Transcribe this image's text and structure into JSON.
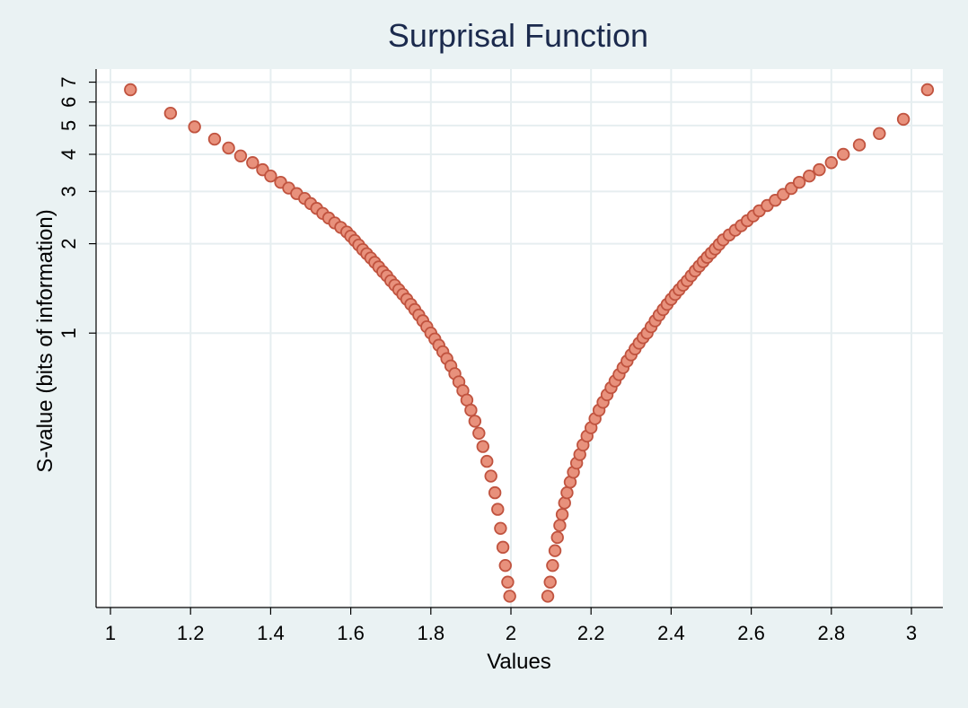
{
  "chart_data": {
    "type": "scatter",
    "title": "Surprisal Function",
    "xlabel": "Values",
    "ylabel": "S-value (bits of information)",
    "xlim": [
      0.97,
      3.08
    ],
    "ylim": [
      0.12,
      7.6
    ],
    "y_scale": "log",
    "grid": true,
    "legend": "none",
    "x_ticks": [
      {
        "value": 1,
        "label": "1"
      },
      {
        "value": 1.2,
        "label": "1.2"
      },
      {
        "value": 1.4,
        "label": "1.4"
      },
      {
        "value": 1.6,
        "label": "1.6"
      },
      {
        "value": 1.8,
        "label": "1.8"
      },
      {
        "value": 2,
        "label": "2"
      },
      {
        "value": 2.2,
        "label": "2.2"
      },
      {
        "value": 2.4,
        "label": "2.4"
      },
      {
        "value": 2.6,
        "label": "2.6"
      },
      {
        "value": 2.8,
        "label": "2.8"
      },
      {
        "value": 3,
        "label": "3"
      }
    ],
    "y_ticks": [
      {
        "value": 1,
        "label": "1"
      },
      {
        "value": 2,
        "label": "2"
      },
      {
        "value": 3,
        "label": "3"
      },
      {
        "value": 4,
        "label": "4"
      },
      {
        "value": 5,
        "label": "5"
      },
      {
        "value": 6,
        "label": "6"
      },
      {
        "value": 7,
        "label": "7"
      }
    ],
    "series": [
      {
        "points": [
          [
            1.05,
            6.6
          ],
          [
            1.15,
            5.5
          ],
          [
            1.21,
            4.95
          ],
          [
            1.26,
            4.5
          ],
          [
            1.295,
            4.2
          ],
          [
            1.325,
            3.95
          ],
          [
            1.355,
            3.75
          ],
          [
            1.38,
            3.55
          ],
          [
            1.4,
            3.38
          ],
          [
            1.425,
            3.22
          ],
          [
            1.445,
            3.08
          ],
          [
            1.465,
            2.95
          ],
          [
            1.485,
            2.84
          ],
          [
            1.5,
            2.73
          ],
          [
            1.515,
            2.63
          ],
          [
            1.53,
            2.53
          ],
          [
            1.545,
            2.44
          ],
          [
            1.56,
            2.35
          ],
          [
            1.575,
            2.27
          ],
          [
            1.59,
            2.19
          ],
          [
            1.6,
            2.12
          ],
          [
            1.61,
            2.05
          ],
          [
            1.62,
            1.98
          ],
          [
            1.63,
            1.91
          ],
          [
            1.64,
            1.85
          ],
          [
            1.65,
            1.79
          ],
          [
            1.66,
            1.73
          ],
          [
            1.67,
            1.67
          ],
          [
            1.68,
            1.61
          ],
          [
            1.69,
            1.56
          ],
          [
            1.7,
            1.5
          ],
          [
            1.71,
            1.45
          ],
          [
            1.72,
            1.4
          ],
          [
            1.73,
            1.35
          ],
          [
            1.74,
            1.3
          ],
          [
            1.75,
            1.25
          ],
          [
            1.76,
            1.2
          ],
          [
            1.77,
            1.15
          ],
          [
            1.78,
            1.1
          ],
          [
            1.79,
            1.05
          ],
          [
            1.8,
            1.0
          ],
          [
            1.81,
            0.955
          ],
          [
            1.82,
            0.91
          ],
          [
            1.83,
            0.865
          ],
          [
            1.84,
            0.82
          ],
          [
            1.85,
            0.775
          ],
          [
            1.86,
            0.73
          ],
          [
            1.87,
            0.685
          ],
          [
            1.88,
            0.64
          ],
          [
            1.89,
            0.595
          ],
          [
            1.9,
            0.55
          ],
          [
            1.91,
            0.505
          ],
          [
            1.92,
            0.46
          ],
          [
            1.93,
            0.415
          ],
          [
            1.94,
            0.37
          ],
          [
            1.95,
            0.33
          ],
          [
            1.96,
            0.29
          ],
          [
            1.967,
            0.255
          ],
          [
            1.974,
            0.22
          ],
          [
            1.98,
            0.19
          ],
          [
            1.986,
            0.165
          ],
          [
            1.992,
            0.145
          ],
          [
            1.997,
            0.13
          ],
          [
            2.092,
            0.13
          ],
          [
            2.098,
            0.145
          ],
          [
            2.104,
            0.165
          ],
          [
            2.11,
            0.185
          ],
          [
            2.116,
            0.205
          ],
          [
            2.122,
            0.225
          ],
          [
            2.128,
            0.245
          ],
          [
            2.134,
            0.268
          ],
          [
            2.14,
            0.29
          ],
          [
            2.148,
            0.315
          ],
          [
            2.156,
            0.34
          ],
          [
            2.164,
            0.365
          ],
          [
            2.172,
            0.39
          ],
          [
            2.18,
            0.42
          ],
          [
            2.19,
            0.45
          ],
          [
            2.2,
            0.48
          ],
          [
            2.21,
            0.515
          ],
          [
            2.22,
            0.55
          ],
          [
            2.23,
            0.585
          ],
          [
            2.24,
            0.62
          ],
          [
            2.25,
            0.655
          ],
          [
            2.26,
            0.69
          ],
          [
            2.27,
            0.725
          ],
          [
            2.28,
            0.765
          ],
          [
            2.29,
            0.805
          ],
          [
            2.3,
            0.845
          ],
          [
            2.31,
            0.885
          ],
          [
            2.32,
            0.925
          ],
          [
            2.33,
            0.965
          ],
          [
            2.34,
            1.0
          ],
          [
            2.35,
            1.05
          ],
          [
            2.36,
            1.1
          ],
          [
            2.37,
            1.15
          ],
          [
            2.38,
            1.2
          ],
          [
            2.39,
            1.25
          ],
          [
            2.4,
            1.3
          ],
          [
            2.41,
            1.35
          ],
          [
            2.42,
            1.4
          ],
          [
            2.43,
            1.45
          ],
          [
            2.44,
            1.5
          ],
          [
            2.45,
            1.56
          ],
          [
            2.46,
            1.62
          ],
          [
            2.47,
            1.68
          ],
          [
            2.48,
            1.74
          ],
          [
            2.49,
            1.8
          ],
          [
            2.5,
            1.86
          ],
          [
            2.51,
            1.92
          ],
          [
            2.52,
            1.99
          ],
          [
            2.53,
            2.06
          ],
          [
            2.545,
            2.14
          ],
          [
            2.56,
            2.22
          ],
          [
            2.575,
            2.3
          ],
          [
            2.59,
            2.39
          ],
          [
            2.605,
            2.48
          ],
          [
            2.62,
            2.58
          ],
          [
            2.64,
            2.69
          ],
          [
            2.66,
            2.8
          ],
          [
            2.68,
            2.93
          ],
          [
            2.7,
            3.07
          ],
          [
            2.72,
            3.22
          ],
          [
            2.745,
            3.38
          ],
          [
            2.77,
            3.55
          ],
          [
            2.8,
            3.75
          ],
          [
            2.83,
            4.0
          ],
          [
            2.87,
            4.3
          ],
          [
            2.92,
            4.7
          ],
          [
            2.98,
            5.25
          ],
          [
            3.04,
            6.6
          ]
        ]
      }
    ],
    "colors": {
      "background": "#eaf2f3",
      "plot_area": "#ffffff",
      "grid": "#e6eef0",
      "marker_fill": "#e8917c",
      "marker_edge": "#c0533f",
      "title": "#1b2a4d",
      "axis": "#000000"
    }
  }
}
